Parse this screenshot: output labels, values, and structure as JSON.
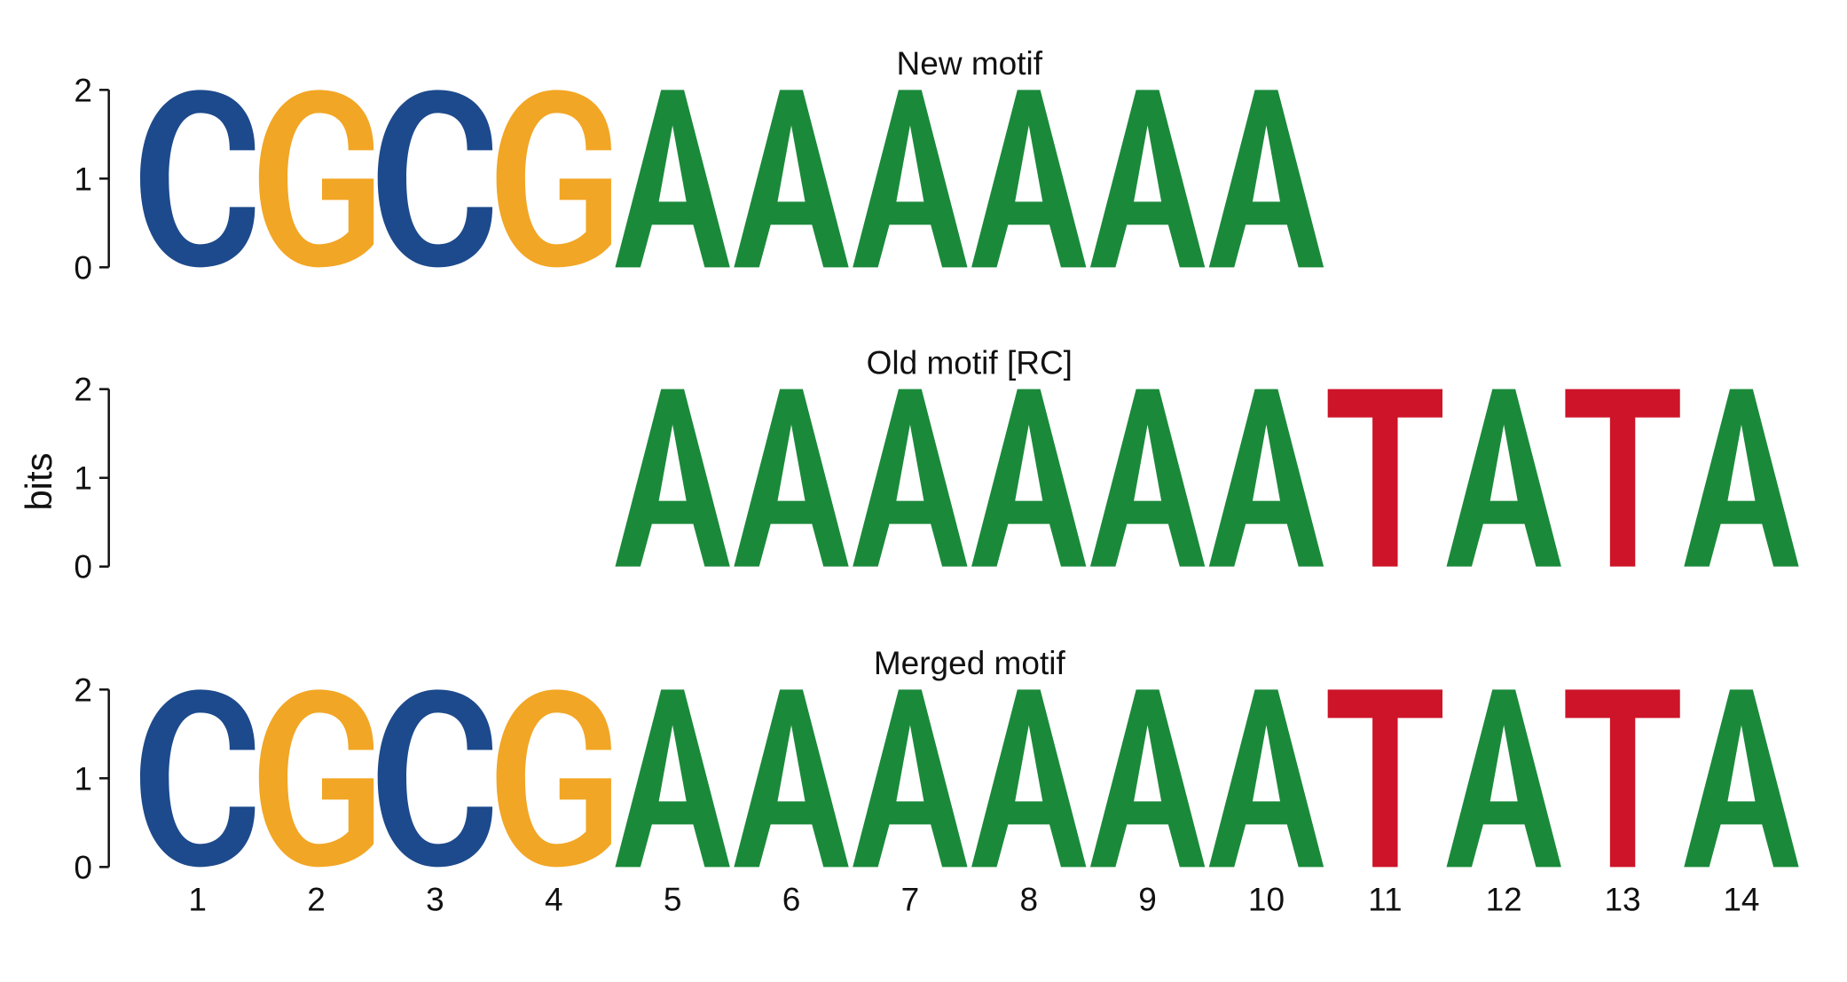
{
  "chart_data": {
    "type": "sequence-logo",
    "ylabel": "bits",
    "ylim": [
      0,
      2
    ],
    "y_ticks": [
      "0",
      "1",
      "2"
    ],
    "x_positions": [
      "1",
      "2",
      "3",
      "4",
      "5",
      "6",
      "7",
      "8",
      "9",
      "10",
      "11",
      "12",
      "13",
      "14"
    ],
    "base_colors": {
      "A": "#1a8a3a",
      "C": "#1d4a8c",
      "G": "#f2a625",
      "T": "#cd1429"
    },
    "panels": [
      {
        "title": "New motif",
        "letters": [
          {
            "pos": 1,
            "base": "C",
            "bits": 2
          },
          {
            "pos": 2,
            "base": "G",
            "bits": 2
          },
          {
            "pos": 3,
            "base": "C",
            "bits": 2
          },
          {
            "pos": 4,
            "base": "G",
            "bits": 2
          },
          {
            "pos": 5,
            "base": "A",
            "bits": 2
          },
          {
            "pos": 6,
            "base": "A",
            "bits": 2
          },
          {
            "pos": 7,
            "base": "A",
            "bits": 2
          },
          {
            "pos": 8,
            "base": "A",
            "bits": 2
          },
          {
            "pos": 9,
            "base": "A",
            "bits": 2
          },
          {
            "pos": 10,
            "base": "A",
            "bits": 2
          }
        ]
      },
      {
        "title": "Old motif [RC]",
        "letters": [
          {
            "pos": 5,
            "base": "A",
            "bits": 2
          },
          {
            "pos": 6,
            "base": "A",
            "bits": 2
          },
          {
            "pos": 7,
            "base": "A",
            "bits": 2
          },
          {
            "pos": 8,
            "base": "A",
            "bits": 2
          },
          {
            "pos": 9,
            "base": "A",
            "bits": 2
          },
          {
            "pos": 10,
            "base": "A",
            "bits": 2
          },
          {
            "pos": 11,
            "base": "T",
            "bits": 2
          },
          {
            "pos": 12,
            "base": "A",
            "bits": 2
          },
          {
            "pos": 13,
            "base": "T",
            "bits": 2
          },
          {
            "pos": 14,
            "base": "A",
            "bits": 2
          }
        ]
      },
      {
        "title": "Merged motif",
        "letters": [
          {
            "pos": 1,
            "base": "C",
            "bits": 2
          },
          {
            "pos": 2,
            "base": "G",
            "bits": 2
          },
          {
            "pos": 3,
            "base": "C",
            "bits": 2
          },
          {
            "pos": 4,
            "base": "G",
            "bits": 2
          },
          {
            "pos": 5,
            "base": "A",
            "bits": 2
          },
          {
            "pos": 6,
            "base": "A",
            "bits": 2
          },
          {
            "pos": 7,
            "base": "A",
            "bits": 2
          },
          {
            "pos": 8,
            "base": "A",
            "bits": 2
          },
          {
            "pos": 9,
            "base": "A",
            "bits": 2
          },
          {
            "pos": 10,
            "base": "A",
            "bits": 2
          },
          {
            "pos": 11,
            "base": "T",
            "bits": 2
          },
          {
            "pos": 12,
            "base": "A",
            "bits": 2
          },
          {
            "pos": 13,
            "base": "T",
            "bits": 2
          },
          {
            "pos": 14,
            "base": "A",
            "bits": 2
          }
        ]
      }
    ]
  }
}
